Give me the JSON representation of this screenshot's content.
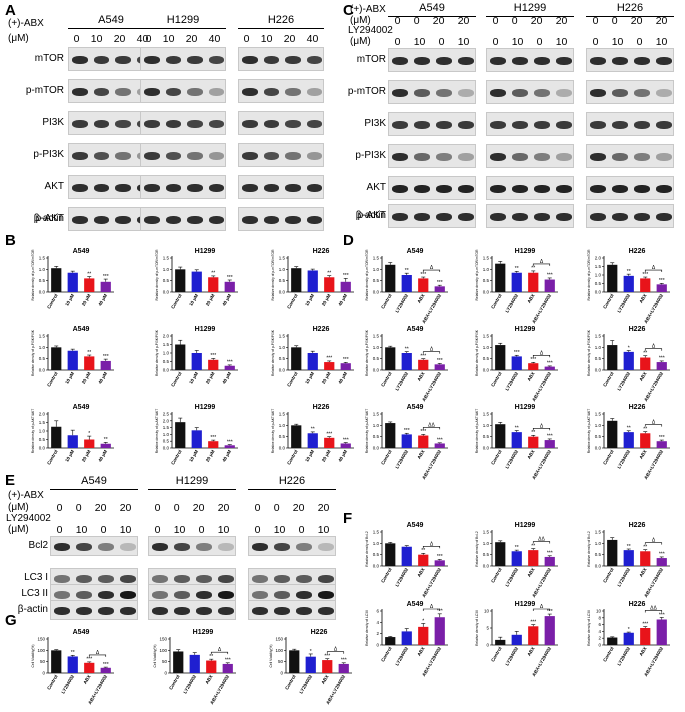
{
  "panels": [
    "A",
    "B",
    "C",
    "D",
    "E",
    "F",
    "G"
  ],
  "colors": {
    "black": "#111111",
    "blue": "#1f1fd0",
    "red": "#e8141a",
    "purple": "#7a1fa8"
  },
  "cell_lines": [
    "A549",
    "H1299",
    "H226"
  ],
  "A": {
    "cond_label_1": "(+)-ABX",
    "cond_label_2": "(μM)",
    "doses": [
      "0",
      "10",
      "20",
      "40"
    ],
    "proteins": [
      "mTOR",
      "p-mTOR",
      "PI3K",
      "p-PI3K",
      "AKT",
      "p-AKT",
      "β-actin"
    ]
  },
  "C": {
    "cond_label_1": "(+)-ABX",
    "cond_label_2": "(μM)",
    "cond_label_3": "LY294002",
    "cond_label_4": "(μM)",
    "abx": [
      "0",
      "0",
      "20",
      "20"
    ],
    "ly": [
      "0",
      "10",
      "0",
      "10"
    ],
    "proteins": [
      "mTOR",
      "p-mTOR",
      "PI3K",
      "p-PI3K",
      "AKT",
      "p-AKT",
      "β-actin"
    ]
  },
  "E": {
    "cond_label_1": "(+)-ABX",
    "cond_label_2": "(μM)",
    "cond_label_3": "LY294002",
    "cond_label_4": "(μM)",
    "abx": [
      "0",
      "0",
      "20",
      "20"
    ],
    "ly": [
      "0",
      "10",
      "0",
      "10"
    ],
    "proteins": [
      "Bcl2",
      "LC3 I",
      "LC3 II",
      "β-actin"
    ]
  },
  "chart_data": [
    {
      "panel": "B",
      "title": "A549",
      "type": "bar",
      "ylabel": "Relative density of p-mTOR/mTOR",
      "categories": [
        "Control",
        "10 μM",
        "20 μM",
        "40 μM"
      ],
      "values": [
        1.05,
        0.85,
        0.6,
        0.45
      ],
      "errors": [
        0.08,
        0.07,
        0.08,
        0.12
      ],
      "sig": [
        "",
        "",
        "**",
        "***"
      ],
      "ylim": [
        0,
        1.5
      ],
      "yticks": [
        "0.0",
        "0.5",
        "1.0",
        "1.5"
      ]
    },
    {
      "panel": "B",
      "title": "H1299",
      "type": "bar",
      "ylabel": "Relative density of p-mTOR/mTOR",
      "categories": [
        "Control",
        "10 μM",
        "20 μM",
        "40 μM"
      ],
      "values": [
        1.0,
        0.9,
        0.65,
        0.45
      ],
      "errors": [
        0.1,
        0.08,
        0.06,
        0.08
      ],
      "sig": [
        "",
        "",
        "**",
        "***"
      ],
      "ylim": [
        0,
        1.5
      ],
      "yticks": [
        "0.0",
        "0.5",
        "1.0",
        "1.5"
      ]
    },
    {
      "panel": "B",
      "title": "H226",
      "type": "bar",
      "ylabel": "Relative density of p-mTOR/mTOR",
      "categories": [
        "Control",
        "10 μM",
        "20 μM",
        "40 μM"
      ],
      "values": [
        1.05,
        0.95,
        0.65,
        0.45
      ],
      "errors": [
        0.07,
        0.06,
        0.07,
        0.15
      ],
      "sig": [
        "",
        "",
        "**",
        "***"
      ],
      "ylim": [
        0,
        1.5
      ],
      "yticks": [
        "0.0",
        "0.5",
        "1.0",
        "1.5"
      ]
    },
    {
      "panel": "B",
      "title": "A549",
      "type": "bar",
      "ylabel": "Relative density of p-PI3K/PI3K",
      "categories": [
        "Control",
        "10 μM",
        "20 μM",
        "40 μM"
      ],
      "values": [
        1.0,
        0.85,
        0.6,
        0.4
      ],
      "errors": [
        0.06,
        0.07,
        0.06,
        0.08
      ],
      "sig": [
        "",
        "",
        "**",
        "***"
      ],
      "ylim": [
        0,
        1.5
      ],
      "yticks": [
        "0.0",
        "0.5",
        "1.0",
        "1.5"
      ]
    },
    {
      "panel": "B",
      "title": "H1299",
      "type": "bar",
      "ylabel": "Relative density of p-PI3K/PI3K",
      "categories": [
        "Control",
        "10 μM",
        "20 μM",
        "40 μM"
      ],
      "values": [
        1.5,
        1.0,
        0.6,
        0.25
      ],
      "errors": [
        0.25,
        0.15,
        0.08,
        0.05
      ],
      "sig": [
        "",
        "",
        "***",
        "***"
      ],
      "ylim": [
        0,
        2.0
      ],
      "yticks": [
        "0.0",
        "0.5",
        "1.0",
        "1.5",
        "2.0"
      ]
    },
    {
      "panel": "B",
      "title": "H226",
      "type": "bar",
      "ylabel": "Relative density of p-PI3K/PI3K",
      "categories": [
        "Control",
        "10 μM",
        "20 μM",
        "40 μM"
      ],
      "values": [
        1.0,
        0.75,
        0.35,
        0.3
      ],
      "errors": [
        0.07,
        0.08,
        0.05,
        0.04
      ],
      "sig": [
        "",
        "",
        "***",
        "***"
      ],
      "ylim": [
        0,
        1.5
      ],
      "yticks": [
        "0.0",
        "0.5",
        "1.0",
        "1.5"
      ]
    },
    {
      "panel": "B",
      "title": "A549",
      "type": "bar",
      "ylabel": "Relative density of p-AKT/AKT",
      "categories": [
        "Control",
        "10 μM",
        "20 μM",
        "40 μM"
      ],
      "values": [
        1.25,
        0.75,
        0.5,
        0.25
      ],
      "errors": [
        0.35,
        0.3,
        0.2,
        0.08
      ],
      "sig": [
        "",
        "",
        "*",
        "**"
      ],
      "ylim": [
        0,
        2.0
      ],
      "yticks": [
        "0.0",
        "0.5",
        "1.0",
        "1.5",
        "2.0"
      ]
    },
    {
      "panel": "B",
      "title": "H1299",
      "type": "bar",
      "ylabel": "Relative density of p-AKT/AKT",
      "categories": [
        "Control",
        "10 μM",
        "20 μM",
        "40 μM"
      ],
      "values": [
        1.9,
        1.3,
        0.5,
        0.2
      ],
      "errors": [
        0.3,
        0.2,
        0.08,
        0.05
      ],
      "sig": [
        "",
        "",
        "***",
        "***"
      ],
      "ylim": [
        0,
        2.5
      ],
      "yticks": [
        "0.0",
        "0.5",
        "1.0",
        "1.5",
        "2.0",
        "2.5"
      ]
    },
    {
      "panel": "B",
      "title": "H226",
      "type": "bar",
      "ylabel": "Relative density of p-AKT/AKT",
      "categories": [
        "Control",
        "10 μM",
        "20 μM",
        "40 μM"
      ],
      "values": [
        1.0,
        0.65,
        0.45,
        0.2
      ],
      "errors": [
        0.05,
        0.06,
        0.05,
        0.04
      ],
      "sig": [
        "",
        "**",
        "***",
        "***"
      ],
      "ylim": [
        0,
        1.5
      ],
      "yticks": [
        "0.0",
        "0.5",
        "1.0",
        "1.5"
      ]
    },
    {
      "panel": "D",
      "title": "A549",
      "type": "bar",
      "ylabel": "Relative density of p-mTOR/mTOR",
      "categories": [
        "Control",
        "LY294002",
        "ABX",
        "ABX+LY294002"
      ],
      "values": [
        1.2,
        0.75,
        0.6,
        0.25
      ],
      "errors": [
        0.1,
        0.08,
        0.06,
        0.05
      ],
      "sig": [
        "",
        "**",
        "***",
        "***"
      ],
      "bracket": "Δ",
      "ylim": [
        0,
        1.5
      ],
      "yticks": [
        "0.0",
        "0.5",
        "1.0",
        "1.5"
      ]
    },
    {
      "panel": "D",
      "title": "H1299",
      "type": "bar",
      "ylabel": "Relative density of p-mTOR/mTOR",
      "categories": [
        "Control",
        "LY294002",
        "ABX",
        "ABX+LY294002"
      ],
      "values": [
        1.25,
        0.85,
        0.85,
        0.55
      ],
      "errors": [
        0.1,
        0.06,
        0.08,
        0.07
      ],
      "sig": [
        "",
        "**",
        "**",
        "***"
      ],
      "bracket": "Δ",
      "ylim": [
        0,
        1.5
      ],
      "yticks": [
        "0.0",
        "0.5",
        "1.0",
        "1.5"
      ]
    },
    {
      "panel": "D",
      "title": "H226",
      "type": "bar",
      "ylabel": "Relative density of p-mTOR/mTOR",
      "categories": [
        "Control",
        "LY294002",
        "ABX",
        "ABX+LY294002"
      ],
      "values": [
        1.6,
        0.95,
        0.8,
        0.45
      ],
      "errors": [
        0.12,
        0.1,
        0.08,
        0.06
      ],
      "sig": [
        "",
        "**",
        "***",
        "***"
      ],
      "bracket": "Δ",
      "ylim": [
        0,
        2.0
      ],
      "yticks": [
        "0.0",
        "0.5",
        "1.0",
        "1.5",
        "2.0"
      ]
    },
    {
      "panel": "D",
      "title": "A549",
      "type": "bar",
      "ylabel": "Relative density of p-PI3K/PI3K",
      "categories": [
        "Control",
        "LY294002",
        "ABX",
        "ABX+LY294002"
      ],
      "values": [
        1.0,
        0.75,
        0.45,
        0.25
      ],
      "errors": [
        0.05,
        0.06,
        0.05,
        0.04
      ],
      "sig": [
        "",
        "**",
        "***",
        "***"
      ],
      "bracket": "Δ",
      "ylim": [
        0,
        1.5
      ],
      "yticks": [
        "0.0",
        "0.5",
        "1.0",
        "1.5"
      ]
    },
    {
      "panel": "D",
      "title": "H1299",
      "type": "bar",
      "ylabel": "Relative density of p-PI3K/PI3K",
      "categories": [
        "Control",
        "LY294002",
        "ABX",
        "ABX+LY294002"
      ],
      "values": [
        1.1,
        0.6,
        0.3,
        0.15
      ],
      "errors": [
        0.08,
        0.05,
        0.04,
        0.03
      ],
      "sig": [
        "",
        "***",
        "***",
        "***"
      ],
      "bracket": "Δ",
      "ylim": [
        0,
        1.5
      ],
      "yticks": [
        "0.0",
        "0.5",
        "1.0",
        "1.5"
      ]
    },
    {
      "panel": "D",
      "title": "H226",
      "type": "bar",
      "ylabel": "Relative density of p-PI3K/PI3K",
      "categories": [
        "Control",
        "LY294002",
        "ABX",
        "ABX+LY294002"
      ],
      "values": [
        1.1,
        0.8,
        0.55,
        0.35
      ],
      "errors": [
        0.2,
        0.06,
        0.08,
        0.05
      ],
      "sig": [
        "",
        "*",
        "**",
        "***"
      ],
      "bracket": "Δ",
      "ylim": [
        0,
        1.5
      ],
      "yticks": [
        "0.0",
        "0.5",
        "1.0",
        "1.5"
      ]
    },
    {
      "panel": "D",
      "title": "A549",
      "type": "bar",
      "ylabel": "Relative density of p-AKT/AKT",
      "categories": [
        "Control",
        "LY294002",
        "ABX",
        "ABX+LY294002"
      ],
      "values": [
        1.1,
        0.6,
        0.55,
        0.2
      ],
      "errors": [
        0.05,
        0.05,
        0.05,
        0.03
      ],
      "sig": [
        "",
        "***",
        "***",
        "***"
      ],
      "bracket": "ΔΔ",
      "ylim": [
        0,
        1.5
      ],
      "yticks": [
        "0.0",
        "0.5",
        "1.0",
        "1.5"
      ]
    },
    {
      "panel": "D",
      "title": "H1299",
      "type": "bar",
      "ylabel": "Relative density of p-AKT/AKT",
      "categories": [
        "Control",
        "LY294002",
        "ABX",
        "ABX+LY294002"
      ],
      "values": [
        1.05,
        0.7,
        0.5,
        0.35
      ],
      "errors": [
        0.08,
        0.07,
        0.06,
        0.05
      ],
      "sig": [
        "",
        "**",
        "**",
        "***"
      ],
      "bracket": "Δ",
      "ylim": [
        0,
        1.5
      ],
      "yticks": [
        "0.0",
        "0.5",
        "1.0",
        "1.5"
      ]
    },
    {
      "panel": "D",
      "title": "H226",
      "type": "bar",
      "ylabel": "Relative density of p-AKT/AKT",
      "categories": [
        "Control",
        "LY294002",
        "ABX",
        "ABX+LY294002"
      ],
      "values": [
        1.2,
        0.7,
        0.65,
        0.3
      ],
      "errors": [
        0.1,
        0.06,
        0.07,
        0.05
      ],
      "sig": [
        "",
        "**",
        "**",
        "***"
      ],
      "bracket": "Δ",
      "ylim": [
        0,
        1.5
      ],
      "yticks": [
        "0.0",
        "0.5",
        "1.0",
        "1.5"
      ]
    },
    {
      "panel": "F",
      "title": "A549",
      "type": "bar",
      "ylabel": "Relative density of Bcl-2",
      "categories": [
        "Control",
        "LY294002",
        "ABX",
        "ABX+LY294002"
      ],
      "values": [
        1.0,
        0.85,
        0.5,
        0.25
      ],
      "errors": [
        0.04,
        0.05,
        0.06,
        0.04
      ],
      "sig": [
        "",
        "",
        "**",
        "***"
      ],
      "bracket": "Δ",
      "ylim": [
        0,
        1.5
      ],
      "yticks": [
        "0.0",
        "0.5",
        "1.0",
        "1.5"
      ]
    },
    {
      "panel": "F",
      "title": "H1299",
      "type": "bar",
      "ylabel": "Relative density of Bcl-2",
      "categories": [
        "Control",
        "LY294002",
        "ABX",
        "ABX+LY294002"
      ],
      "values": [
        1.05,
        0.65,
        0.7,
        0.4
      ],
      "errors": [
        0.06,
        0.05,
        0.07,
        0.05
      ],
      "sig": [
        "",
        "**",
        "**",
        "***"
      ],
      "bracket": "ΔΔ",
      "ylim": [
        0,
        1.5
      ],
      "yticks": [
        "0.0",
        "0.5",
        "1.0",
        "1.5"
      ]
    },
    {
      "panel": "F",
      "title": "H226",
      "type": "bar",
      "ylabel": "Relative density of Bcl-2",
      "categories": [
        "Control",
        "LY294002",
        "ABX",
        "ABX+LY294002"
      ],
      "values": [
        1.15,
        0.7,
        0.65,
        0.35
      ],
      "errors": [
        0.1,
        0.05,
        0.07,
        0.05
      ],
      "sig": [
        "",
        "**",
        "**",
        "***"
      ],
      "bracket": "Δ",
      "ylim": [
        0,
        1.5
      ],
      "yticks": [
        "0.0",
        "0.5",
        "1.0",
        "1.5"
      ]
    },
    {
      "panel": "F",
      "title": "A549",
      "type": "bar",
      "ylabel": "Relative density of LC3II",
      "categories": [
        "Control",
        "LY294002",
        "ABX",
        "ABX+LY294002"
      ],
      "values": [
        1.4,
        2.4,
        3.2,
        4.9
      ],
      "errors": [
        0.1,
        0.5,
        0.6,
        0.6
      ],
      "sig": [
        "",
        "",
        "*",
        "***"
      ],
      "bracket": "Δ",
      "ylim": [
        0,
        6
      ],
      "yticks": [
        "0",
        "2",
        "4",
        "6"
      ]
    },
    {
      "panel": "F",
      "title": "H1299",
      "type": "bar",
      "ylabel": "Relative density of LC3II",
      "categories": [
        "Control",
        "LY294002",
        "ABX",
        "ABX+LY294002"
      ],
      "values": [
        1.5,
        3.0,
        5.5,
        8.5
      ],
      "errors": [
        0.8,
        1.0,
        0.5,
        0.6
      ],
      "sig": [
        "",
        "",
        "***",
        "***"
      ],
      "bracket": "Δ",
      "ylim": [
        0,
        10
      ],
      "yticks": [
        "0",
        "5",
        "10"
      ]
    },
    {
      "panel": "F",
      "title": "H226",
      "type": "bar",
      "ylabel": "Relative density of LC3II",
      "categories": [
        "Control",
        "LY294002",
        "ABX",
        "ABX+LY294002"
      ],
      "values": [
        2.2,
        3.6,
        5.0,
        7.5
      ],
      "errors": [
        0.2,
        0.2,
        0.4,
        0.6
      ],
      "sig": [
        "",
        "*",
        "***",
        "***"
      ],
      "bracket": "ΔΔ",
      "ylim": [
        0,
        10
      ],
      "yticks": [
        "0",
        "2",
        "4",
        "6",
        "8",
        "10"
      ]
    },
    {
      "panel": "G",
      "title": "A549",
      "type": "bar",
      "ylabel": "Cell Viability(%)",
      "categories": [
        "Control",
        "LY294002",
        "ABX",
        "ABX+LY294002"
      ],
      "values": [
        100,
        73,
        45,
        23
      ],
      "errors": [
        3,
        5,
        4,
        3
      ],
      "sig": [
        "",
        "**",
        "***",
        "***"
      ],
      "bracket": "Δ",
      "ylim": [
        0,
        150
      ],
      "yticks": [
        "0",
        "50",
        "100",
        "150"
      ]
    },
    {
      "panel": "G",
      "title": "H1299",
      "type": "bar",
      "ylabel": "Cell Viability(%)",
      "categories": [
        "Control",
        "LY294002",
        "ABX",
        "ABX+LY294002"
      ],
      "values": [
        95,
        80,
        55,
        40
      ],
      "errors": [
        8,
        10,
        6,
        5
      ],
      "sig": [
        "",
        "",
        "**",
        "***"
      ],
      "bracket": "Δ",
      "ylim": [
        0,
        150
      ],
      "yticks": [
        "0",
        "50",
        "100",
        "150"
      ]
    },
    {
      "panel": "G",
      "title": "H226",
      "type": "bar",
      "ylabel": "Cell Viability(%)",
      "categories": [
        "Control",
        "LY294002",
        "ABX",
        "ABX+LY294002"
      ],
      "values": [
        100,
        72,
        57,
        40
      ],
      "errors": [
        5,
        12,
        6,
        5
      ],
      "sig": [
        "",
        "*",
        "***",
        "***"
      ],
      "bracket": "Δ",
      "ylim": [
        0,
        150
      ],
      "yticks": [
        "0",
        "50",
        "100",
        "150"
      ]
    }
  ]
}
